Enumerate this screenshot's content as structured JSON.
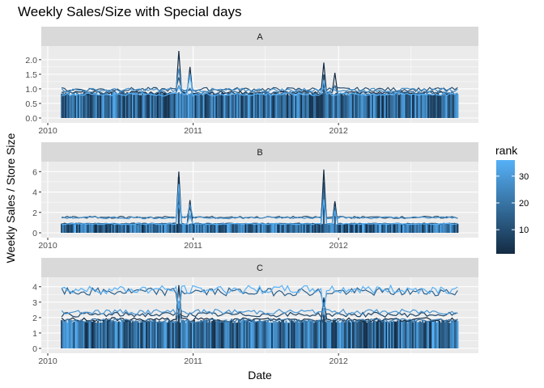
{
  "chart_data": {
    "type": "line",
    "title": "Weekly Sales/Size with Special days",
    "xlabel": "Date",
    "ylabel": "Weekly Sales / Store Size",
    "x_range": [
      "2010-01-01",
      "2012-12-01"
    ],
    "x_ticks": [
      "2010",
      "2011",
      "2012"
    ],
    "grid": true,
    "panels": [
      {
        "name": "A",
        "ylim": [
          0,
          2.3
        ],
        "y_ticks": [
          "0.0",
          "0.5",
          "1.0",
          "1.5",
          "2.0"
        ],
        "base_values": [
          0.85,
          1.0
        ],
        "spikes": [
          {
            "date": "2010-11-26",
            "value": 2.3
          },
          {
            "date": "2010-12-24",
            "value": 1.75
          },
          {
            "date": "2011-11-25",
            "value": 1.9
          },
          {
            "date": "2011-12-23",
            "value": 1.55
          }
        ]
      },
      {
        "name": "B",
        "ylim": [
          0,
          6.5
        ],
        "y_ticks": [
          "0",
          "2",
          "4",
          "6"
        ],
        "base_values": [
          0.9,
          1.5
        ],
        "spikes": [
          {
            "date": "2010-11-26",
            "value": 6.0
          },
          {
            "date": "2010-12-24",
            "value": 3.2
          },
          {
            "date": "2011-11-25",
            "value": 6.2
          },
          {
            "date": "2011-12-23",
            "value": 3.1
          }
        ]
      },
      {
        "name": "C",
        "ylim": [
          0,
          4.3
        ],
        "y_ticks": [
          "0",
          "1",
          "2",
          "3",
          "4"
        ],
        "base_values": [
          1.8,
          2.3,
          3.8
        ],
        "spikes": [
          {
            "date": "2010-11-26",
            "value": 4.1
          },
          {
            "date": "2011-11-25",
            "value": 3.3
          }
        ]
      }
    ],
    "legend": {
      "title": "rank",
      "position": "right",
      "ticks": [
        "10",
        "20",
        "30"
      ],
      "range": [
        1,
        36
      ],
      "colors": [
        "#132B43",
        "#56B1F7"
      ]
    }
  }
}
